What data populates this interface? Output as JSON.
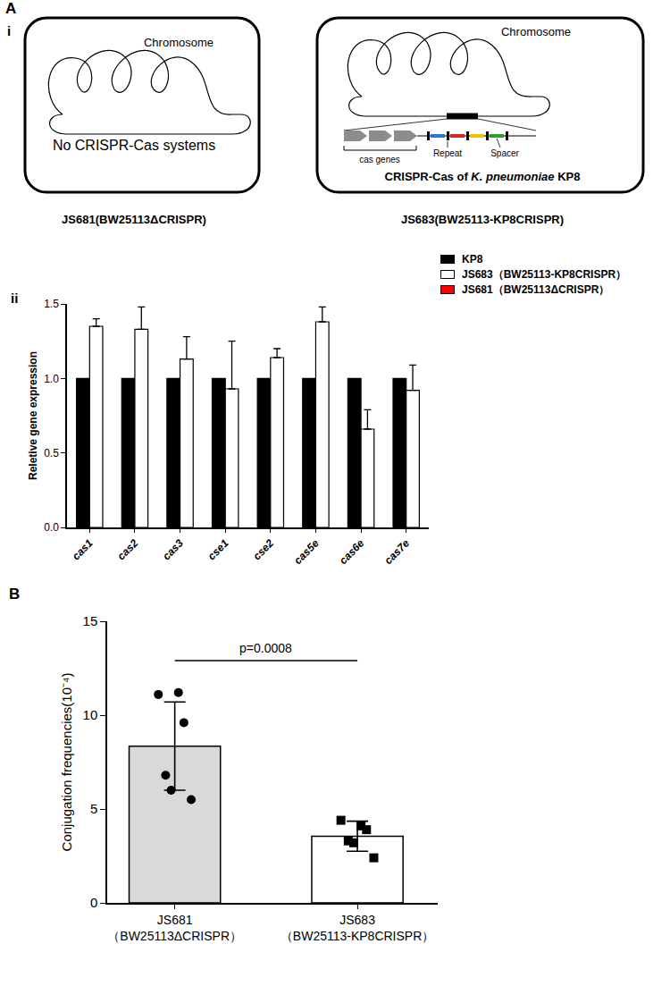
{
  "diagram": {
    "panel": "A",
    "sub_panel": "i",
    "boxes": [
      {
        "chromosome_label": "Chromosome",
        "text_parts": [
          {
            "text": "No CRISPR-Cas systems",
            "italic": false
          }
        ],
        "caption": "JS681(BW25113ΔCRISPR)"
      },
      {
        "chromosome_label": "Chromosome",
        "text_parts": [
          {
            "text": "CRISPR-Cas of ",
            "italic": false
          },
          {
            "text": "K. pneumoniae",
            "italic": true
          },
          {
            "text": " KP8",
            "italic": false
          }
        ],
        "caption": "JS683(BW25113-KP8CRISPR)",
        "cas_label": "cas genes",
        "repeat_label": "Repeat",
        "spacer_label": "Spacer"
      }
    ]
  },
  "chart_data": [
    {
      "panel": "ii",
      "type": "bar",
      "categories": [
        "cas1",
        "cas2",
        "cas3",
        "cse1",
        "cse2",
        "cas5e",
        "cas6e",
        "cas7e"
      ],
      "series": [
        {
          "name": "KP8",
          "color": "#000000",
          "values": [
            1,
            1,
            1,
            1,
            1,
            1,
            1,
            1
          ]
        },
        {
          "name": "JS683（BW25113-KP8CRISPR）",
          "color": "#ffffff",
          "values": [
            1.35,
            1.33,
            1.13,
            0.93,
            1.14,
            1.38,
            0.66,
            0.92
          ],
          "errors": [
            0.05,
            0.15,
            0.15,
            0.32,
            0.06,
            0.1,
            0.13,
            0.17
          ]
        },
        {
          "name": "JS681（BW25113ΔCRISPR）",
          "color": "#ff0000",
          "values": [
            null,
            null,
            null,
            null,
            null,
            null,
            null,
            null
          ]
        }
      ],
      "y_label": "Reletive gene expression",
      "ylim": [
        0,
        1.5
      ],
      "yticks": [
        {
          "value": 0,
          "label": "0.0"
        },
        {
          "value": 0.5,
          "label": "0.5"
        },
        {
          "value": 1,
          "label": "1.0"
        },
        {
          "value": 1.5,
          "label": "1.5"
        }
      ],
      "legend": "top right",
      "grid": false
    },
    {
      "panel": "B",
      "type": "bar",
      "categories": [
        "JS681\n（BW25113ΔCRISPR）",
        "JS683\n（BW25113-KP8CRISPR）"
      ],
      "values": [
        8.35,
        3.55
      ],
      "errors": [
        2.35,
        0.8
      ],
      "colors": [
        "#d9d9d9",
        "#ffffff"
      ],
      "points": [
        {
          "values": [
            11.1,
            11.2,
            9.6,
            6.8,
            6.0,
            5.5
          ],
          "marker": "circle"
        },
        {
          "values": [
            4.4,
            4.1,
            3.9,
            3.3,
            3.2,
            2.4
          ],
          "marker": "square"
        }
      ],
      "y_label": "Conjugation frequencies(10⁻⁴)",
      "ylim": [
        0,
        15
      ],
      "yticks": [
        0,
        5,
        10,
        15
      ],
      "annotations": [
        {
          "text": "p=0.0008",
          "x": [
            0,
            1
          ],
          "y": 12.9
        }
      ],
      "grid": false
    }
  ]
}
